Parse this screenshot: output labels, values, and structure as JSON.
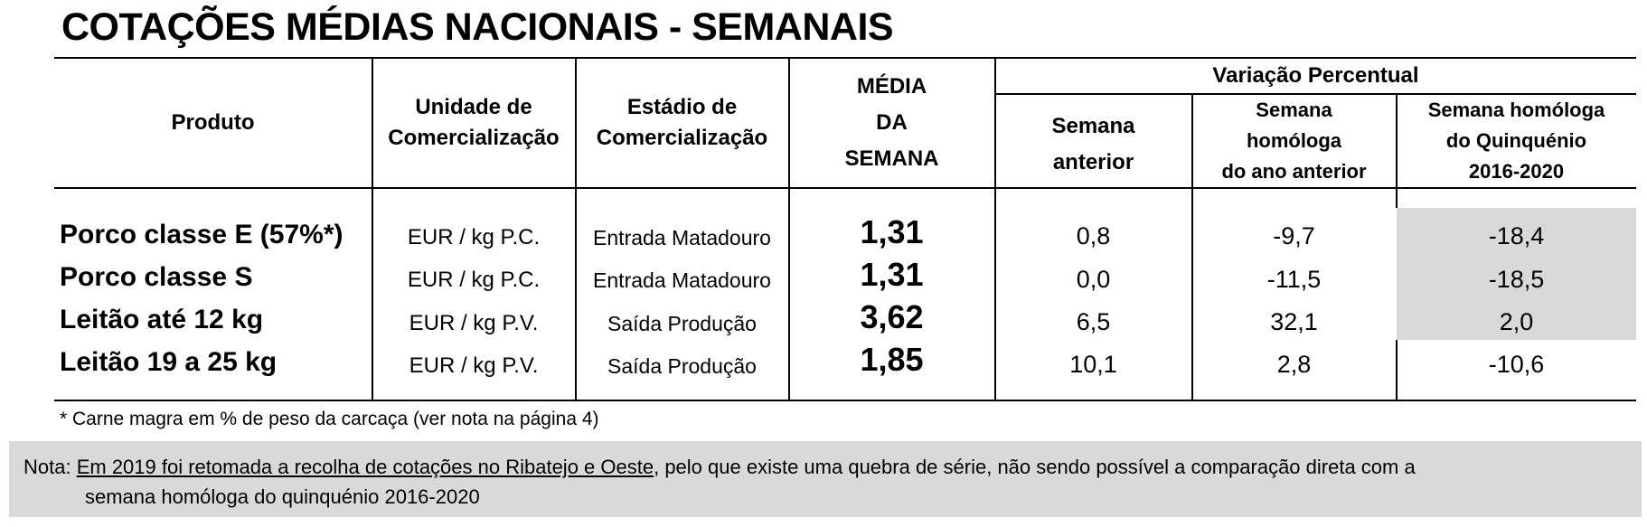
{
  "title": "COTAÇÕES MÉDIAS NACIONAIS - SEMANAIS",
  "headers": {
    "produto": "Produto",
    "unidade": [
      "Unidade de",
      "Comercialização"
    ],
    "estadio": [
      "Estádio de",
      "Comercialização"
    ],
    "media": [
      "MÉDIA",
      "DA",
      "SEMANA"
    ],
    "variacao": "Variação Percentual",
    "semana_anterior": [
      "Semana",
      "anterior"
    ],
    "homologa_ano": [
      "Semana",
      "homóloga",
      "do ano anterior"
    ],
    "homologa_quinq": [
      "Semana homóloga",
      "do Quinquénio",
      "2016-2020"
    ]
  },
  "rows": [
    {
      "produto": "Porco classe E (57%*)",
      "unidade": "EUR / kg P.C.",
      "estadio": "Entrada Matadouro",
      "media": "1,31",
      "sem_ant": "0,8",
      "hom_ano": "-9,7",
      "hom_quinq": "-18,4"
    },
    {
      "produto": "Porco classe S",
      "unidade": "EUR / kg P.C.",
      "estadio": "Entrada Matadouro",
      "media": "1,31",
      "sem_ant": "0,0",
      "hom_ano": "-11,5",
      "hom_quinq": "-18,5"
    },
    {
      "produto": "Leitão até 12 kg",
      "unidade": "EUR / kg P.V.",
      "estadio": "Saída Produção",
      "media": "3,62",
      "sem_ant": "6,5",
      "hom_ano": "32,1",
      "hom_quinq": "2,0"
    },
    {
      "produto": "Leitão 19 a 25 kg",
      "unidade": "EUR / kg P.V.",
      "estadio": "Saída Produção",
      "media": "1,85",
      "sem_ant": "10,1",
      "hom_ano": "2,8",
      "hom_quinq": "-10,6"
    }
  ],
  "footnote": "* Carne magra em % de peso da carcaça (ver nota na página 4)",
  "note": {
    "prefix": "Nota: ",
    "underlined": "Em 2019 foi retomada a recolha de cotações no Ribatejo e Oeste",
    "rest": ", pelo que existe uma quebra de série, não sendo possível a comparação direta com a",
    "line2": "semana homóloga do quinquénio 2016-2020"
  }
}
